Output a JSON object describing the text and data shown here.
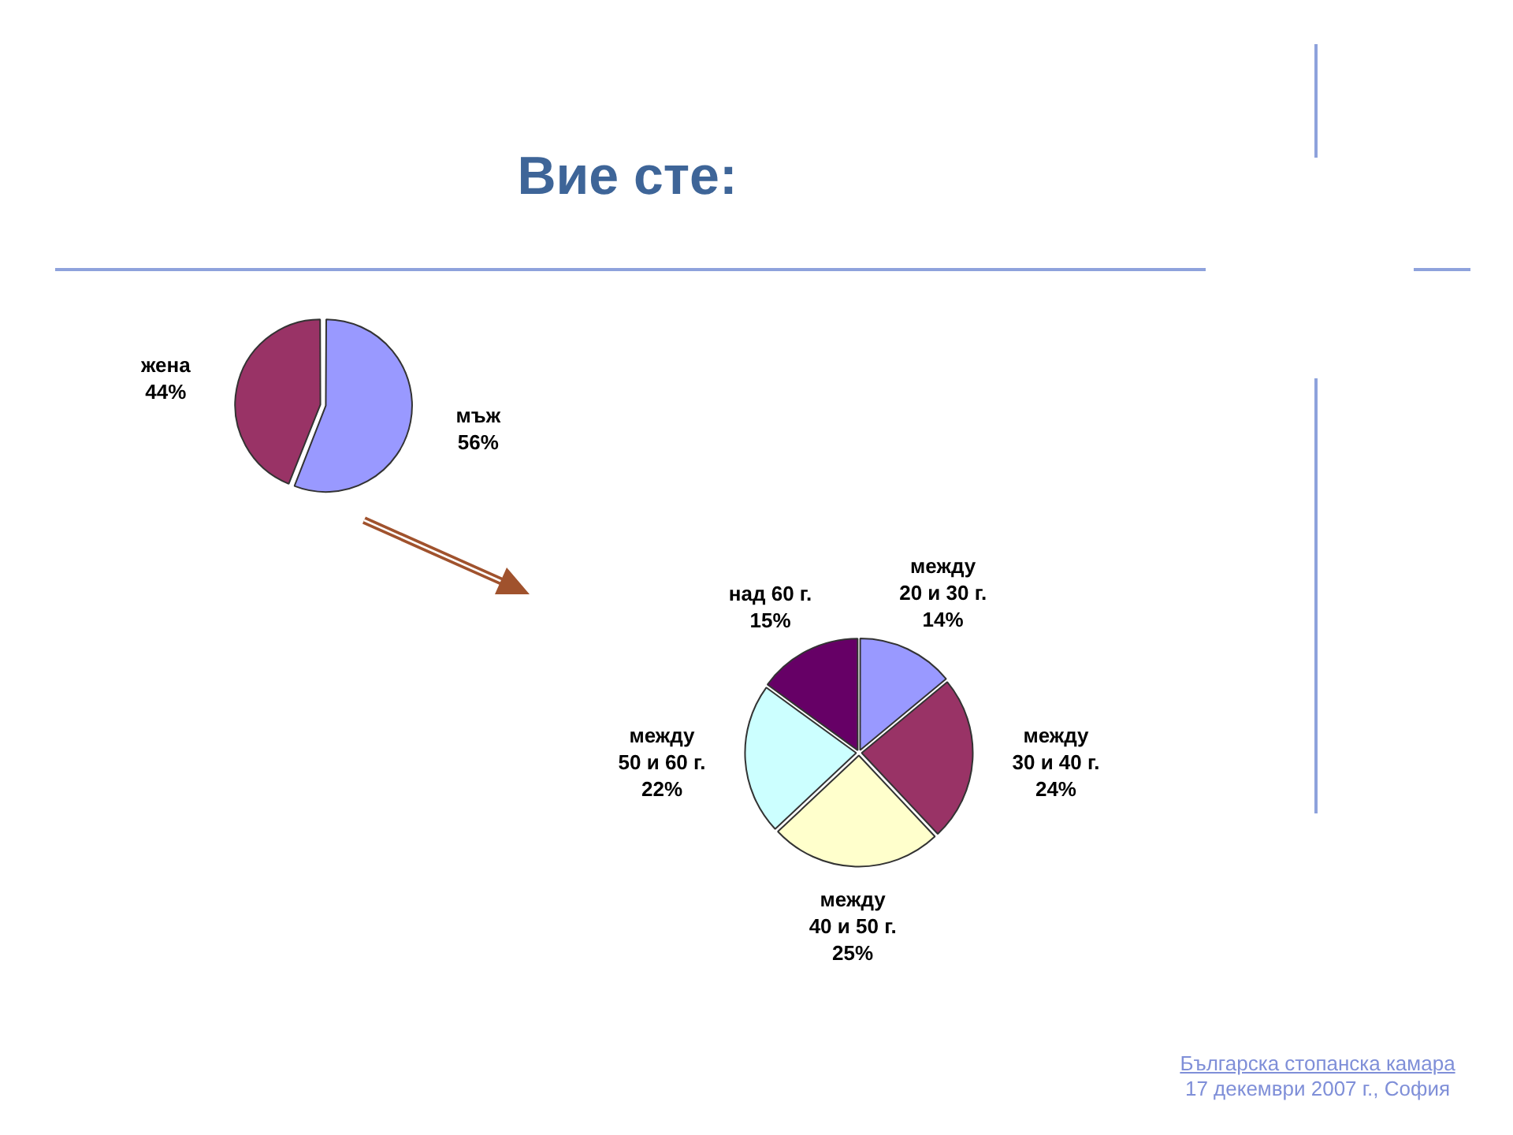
{
  "chart_data": [
    {
      "type": "pie",
      "title": "Вие сте:",
      "categories": [
        "мъж",
        "жена"
      ],
      "values": [
        56,
        44
      ],
      "colors": [
        "#9999ff",
        "#993366"
      ],
      "value_labels": [
        "56%",
        "44%"
      ]
    },
    {
      "type": "pie",
      "categories": [
        "между 20 и 30 г.",
        "между 30 и 40 г.",
        "между 40 и 50 г.",
        "между 50 и 60 г.",
        "над 60 г."
      ],
      "values": [
        14,
        24,
        25,
        22,
        15
      ],
      "colors": [
        "#9999ff",
        "#993366",
        "#ffffcc",
        "#ccffff",
        "#660066"
      ],
      "value_labels": [
        "14%",
        "24%",
        "25%",
        "22%",
        "15%"
      ],
      "annotations": [
        "Българска стопанска камара",
        "17 декември 2007 г., София"
      ]
    }
  ]
}
